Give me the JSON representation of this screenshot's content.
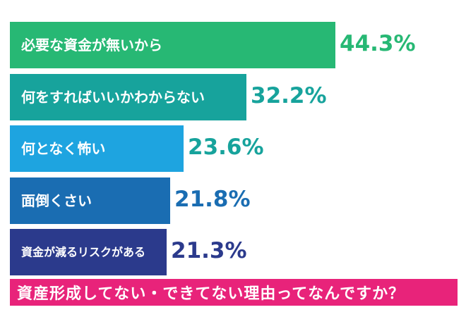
{
  "chart_data": {
    "type": "bar",
    "orientation": "horizontal",
    "categories": [
      "必要な資金が無いから",
      "何をすればいいかわからない",
      "何となく怖い",
      "面倒くさい",
      "資金が減るリスクがある"
    ],
    "values": [
      44.3,
      32.2,
      23.6,
      21.8,
      21.3
    ],
    "value_labels": [
      "44.3%",
      "32.2%",
      "23.6%",
      "21.8%",
      "21.3%"
    ],
    "bar_colors": [
      "#27b874",
      "#17a39c",
      "#1ea4e0",
      "#1a6db2",
      "#2b3a8c"
    ],
    "label_colors": [
      "#27b874",
      "#17a39c",
      "#17a39c",
      "#1a6db2",
      "#2b3a8c"
    ],
    "title": "資産形成してない・できてない理由ってなんですか？",
    "title_bg": "#e8237a",
    "xlim": [
      0,
      44.3
    ],
    "grid": false,
    "legend": "none"
  }
}
